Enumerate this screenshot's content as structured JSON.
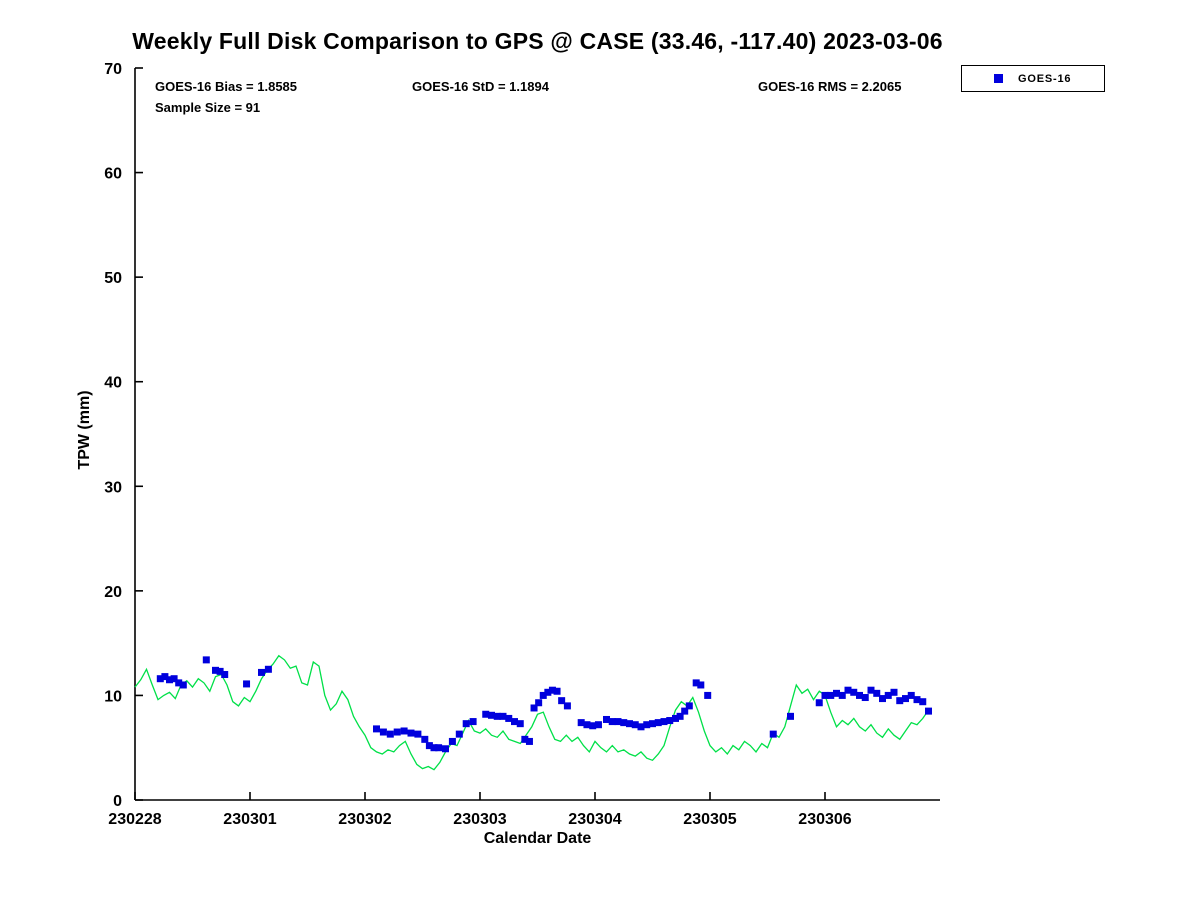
{
  "annotations": {
    "bias": "GOES-16 Bias = 1.8585",
    "std": "GOES-16 StD = 1.1894",
    "rms": "GOES-16 RMS = 2.2065",
    "sample_size": "Sample Size = 91"
  },
  "legend": {
    "items": [
      {
        "label": "GOES-16",
        "marker": "square",
        "color": "#0000dd"
      }
    ]
  },
  "chart_data": {
    "type": "scatter",
    "title": "Weekly Full Disk Comparison to GPS @ CASE (33.46, -117.40) 2023-03-06",
    "xlabel": "Calendar Date",
    "ylabel": "TPW (mm)",
    "xlim": [
      0,
      7
    ],
    "ylim": [
      0,
      70
    ],
    "grid": false,
    "legend_position": "top-right-outside",
    "x_tick_positions": [
      0,
      1,
      2,
      3,
      4,
      5,
      6
    ],
    "x_tick_labels": [
      "230228",
      "230301",
      "230302",
      "230303",
      "230304",
      "230305",
      "230306"
    ],
    "y_ticks": [
      0,
      10,
      20,
      30,
      40,
      50,
      60,
      70
    ],
    "axis_color": "#000000",
    "series": [
      {
        "name": "GPS",
        "type": "line",
        "color": "#00e048",
        "x": [
          0.0,
          0.05,
          0.1,
          0.15,
          0.2,
          0.25,
          0.3,
          0.35,
          0.4,
          0.45,
          0.5,
          0.55,
          0.6,
          0.65,
          0.7,
          0.75,
          0.8,
          0.85,
          0.9,
          0.95,
          1.0,
          1.05,
          1.1,
          1.15,
          1.2,
          1.25,
          1.3,
          1.35,
          1.4,
          1.45,
          1.5,
          1.55,
          1.6,
          1.65,
          1.7,
          1.75,
          1.8,
          1.85,
          1.9,
          1.95,
          2.0,
          2.05,
          2.1,
          2.15,
          2.2,
          2.25,
          2.3,
          2.35,
          2.4,
          2.45,
          2.5,
          2.55,
          2.6,
          2.65,
          2.7,
          2.75,
          2.8,
          2.85,
          2.9,
          2.95,
          3.0,
          3.05,
          3.1,
          3.15,
          3.2,
          3.25,
          3.3,
          3.35,
          3.4,
          3.45,
          3.5,
          3.55,
          3.6,
          3.65,
          3.7,
          3.75,
          3.8,
          3.85,
          3.9,
          3.95,
          4.0,
          4.05,
          4.1,
          4.15,
          4.2,
          4.25,
          4.3,
          4.35,
          4.4,
          4.45,
          4.5,
          4.55,
          4.6,
          4.65,
          4.7,
          4.75,
          4.8,
          4.85,
          4.9,
          4.95,
          5.0,
          5.05,
          5.1,
          5.15,
          5.2,
          5.25,
          5.3,
          5.35,
          5.4,
          5.45,
          5.5,
          5.55,
          5.6,
          5.65,
          5.7,
          5.75,
          5.8,
          5.85,
          5.9,
          5.95,
          6.0,
          6.05,
          6.1,
          6.15,
          6.2,
          6.25,
          6.3,
          6.35,
          6.4,
          6.45,
          6.5,
          6.55,
          6.6,
          6.65,
          6.7,
          6.75,
          6.8,
          6.85,
          6.9
        ],
        "y": [
          10.8,
          11.5,
          12.5,
          11.0,
          9.6,
          10.0,
          10.3,
          9.7,
          11.0,
          11.4,
          10.8,
          11.6,
          11.2,
          10.4,
          11.8,
          12.0,
          11.0,
          9.4,
          9.0,
          9.8,
          9.4,
          10.4,
          11.6,
          12.4,
          13.0,
          13.8,
          13.4,
          12.6,
          12.8,
          11.2,
          11.0,
          13.2,
          12.8,
          10.0,
          8.6,
          9.2,
          10.4,
          9.6,
          8.0,
          7.0,
          6.2,
          5.0,
          4.6,
          4.4,
          4.8,
          4.6,
          5.2,
          5.6,
          4.4,
          3.4,
          3.0,
          3.2,
          2.9,
          3.6,
          4.6,
          5.4,
          5.2,
          6.4,
          7.6,
          6.6,
          6.4,
          6.8,
          6.2,
          6.0,
          6.6,
          5.8,
          5.6,
          5.4,
          6.2,
          7.0,
          8.2,
          8.4,
          7.0,
          5.8,
          5.6,
          6.2,
          5.6,
          6.0,
          5.2,
          4.6,
          5.6,
          5.0,
          4.6,
          5.2,
          4.6,
          4.8,
          4.4,
          4.2,
          4.6,
          4.0,
          3.8,
          4.4,
          5.2,
          7.0,
          8.6,
          9.4,
          9.0,
          9.8,
          8.4,
          6.6,
          5.2,
          4.6,
          5.0,
          4.4,
          5.2,
          4.8,
          5.6,
          5.2,
          4.6,
          5.4,
          5.0,
          6.4,
          6.0,
          7.0,
          9.0,
          11.0,
          10.2,
          10.6,
          9.6,
          10.4,
          10.0,
          8.4,
          7.0,
          7.6,
          7.2,
          7.8,
          7.0,
          6.6,
          7.2,
          6.4,
          6.0,
          6.8,
          6.2,
          5.8,
          6.6,
          7.4,
          7.2,
          7.8,
          8.6
        ]
      },
      {
        "name": "GOES-16",
        "type": "scatter",
        "marker": "square",
        "color": "#0000dd",
        "x": [
          0.22,
          0.26,
          0.3,
          0.34,
          0.38,
          0.42,
          0.62,
          0.7,
          0.74,
          0.78,
          0.97,
          1.1,
          1.16,
          2.1,
          2.16,
          2.22,
          2.28,
          2.34,
          2.4,
          2.46,
          2.52,
          2.56,
          2.6,
          2.64,
          2.7,
          2.76,
          2.82,
          2.88,
          2.94,
          3.05,
          3.1,
          3.15,
          3.2,
          3.25,
          3.3,
          3.35,
          3.39,
          3.43,
          3.47,
          3.51,
          3.55,
          3.59,
          3.63,
          3.67,
          3.71,
          3.76,
          3.88,
          3.93,
          3.98,
          4.03,
          4.1,
          4.15,
          4.2,
          4.25,
          4.3,
          4.35,
          4.4,
          4.45,
          4.5,
          4.55,
          4.6,
          4.65,
          4.7,
          4.74,
          4.78,
          4.82,
          4.88,
          4.92,
          4.98,
          5.55,
          5.7,
          5.95,
          6.0,
          6.05,
          6.1,
          6.15,
          6.2,
          6.25,
          6.3,
          6.35,
          6.4,
          6.45,
          6.5,
          6.55,
          6.6,
          6.65,
          6.7,
          6.75,
          6.8,
          6.85,
          6.9
        ],
        "y": [
          11.6,
          11.8,
          11.5,
          11.6,
          11.2,
          11.0,
          13.4,
          12.4,
          12.3,
          12.0,
          11.1,
          12.2,
          12.5,
          6.8,
          6.5,
          6.3,
          6.5,
          6.6,
          6.4,
          6.3,
          5.8,
          5.2,
          5.0,
          5.0,
          4.9,
          5.6,
          6.3,
          7.3,
          7.5,
          8.2,
          8.1,
          8.0,
          8.0,
          7.8,
          7.5,
          7.3,
          5.8,
          5.6,
          8.8,
          9.3,
          10.0,
          10.3,
          10.5,
          10.4,
          9.5,
          9.0,
          7.4,
          7.2,
          7.1,
          7.2,
          7.7,
          7.5,
          7.5,
          7.4,
          7.3,
          7.2,
          7.0,
          7.2,
          7.3,
          7.4,
          7.5,
          7.6,
          7.8,
          8.0,
          8.5,
          9.0,
          11.2,
          11.0,
          10.0,
          6.3,
          8.0,
          9.3,
          10.0,
          10.0,
          10.2,
          10.0,
          10.5,
          10.3,
          10.0,
          9.8,
          10.5,
          10.2,
          9.7,
          10.0,
          10.3,
          9.5,
          9.7,
          10.0,
          9.6,
          9.4,
          8.5
        ]
      }
    ]
  }
}
